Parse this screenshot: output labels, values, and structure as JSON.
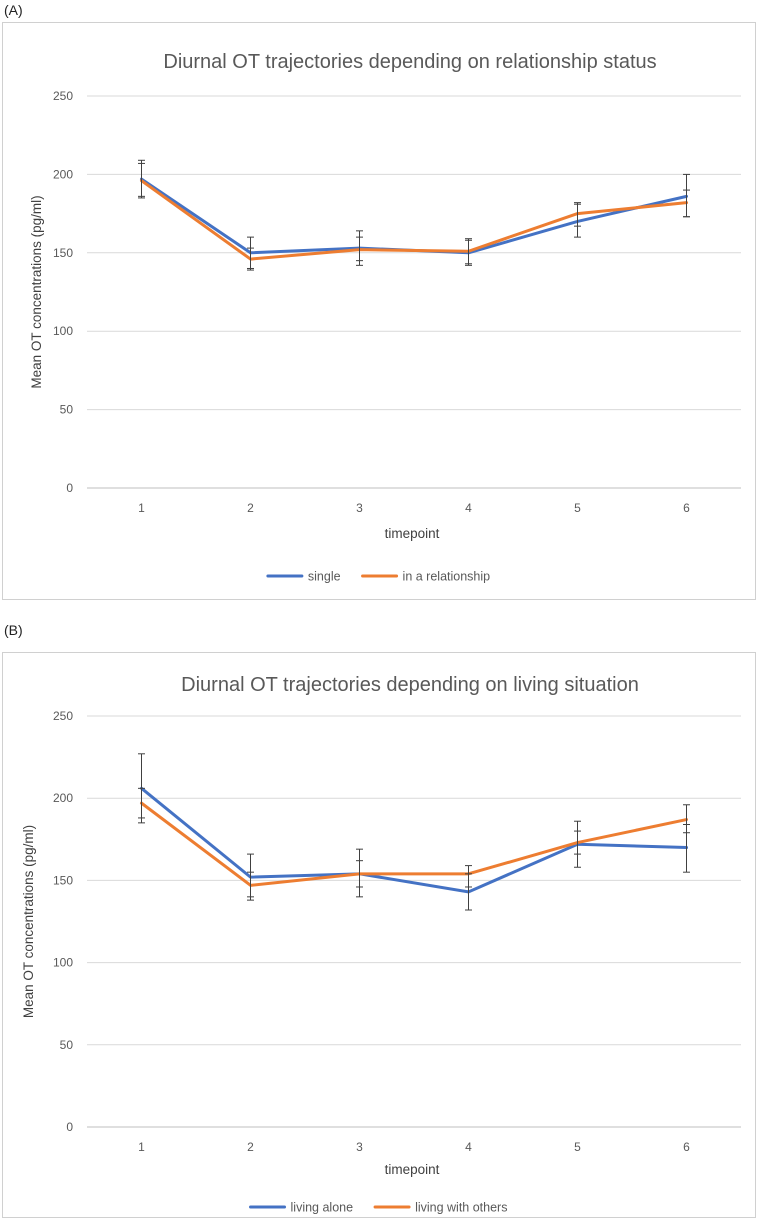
{
  "panels": [
    {
      "label": "(A)",
      "chart_data": {
        "type": "line",
        "title": "Diurnal OT trajectories depending on relationship status",
        "xlabel": "timepoint",
        "ylabel": "Mean OT concentrations (pg/ml)",
        "categories": [
          "1",
          "2",
          "3",
          "4",
          "5",
          "6"
        ],
        "ylim": [
          0,
          250
        ],
        "yticks": [
          0,
          50,
          100,
          150,
          200,
          250
        ],
        "grid": true,
        "legend": "bottom",
        "series": [
          {
            "name": "single",
            "color": "#4472C4",
            "values": [
              197,
              150,
              153,
              150,
              170,
              186
            ],
            "err_low": [
              186,
              140,
              145,
              142,
              160,
              173
            ],
            "err_high": [
              209,
              160,
              164,
              158,
              181,
              200
            ]
          },
          {
            "name": "in a relationship",
            "color": "#ED7D31",
            "values": [
              196,
              146,
              152,
              151,
              175,
              182
            ],
            "err_low": [
              185,
              139,
              142,
              143,
              167,
              173
            ],
            "err_high": [
              207,
              153,
              160,
              159,
              182,
              190
            ]
          }
        ]
      }
    },
    {
      "label": "(B)",
      "chart_data": {
        "type": "line",
        "title": "Diurnal OT trajectories depending on living situation",
        "xlabel": "timepoint",
        "ylabel": "Mean OT concentrations (pg/ml)",
        "categories": [
          "1",
          "2",
          "3",
          "4",
          "5",
          "6"
        ],
        "ylim": [
          0,
          250
        ],
        "yticks": [
          0,
          50,
          100,
          150,
          200,
          250
        ],
        "grid": true,
        "legend": "bottom",
        "series": [
          {
            "name": "living alone",
            "color": "#4472C4",
            "values": [
              206,
              152,
              154,
              143,
              172,
              170
            ],
            "err_low": [
              188,
              140,
              140,
              132,
              158,
              155
            ],
            "err_high": [
              227,
              166,
              169,
              154,
              186,
              184
            ]
          },
          {
            "name": "living with others",
            "color": "#ED7D31",
            "values": [
              197,
              147,
              154,
              154,
              173,
              187
            ],
            "err_low": [
              185,
              138,
              146,
              146,
              166,
              179
            ],
            "err_high": [
              206,
              155,
              162,
              159,
              180,
              196
            ]
          }
        ]
      }
    }
  ]
}
